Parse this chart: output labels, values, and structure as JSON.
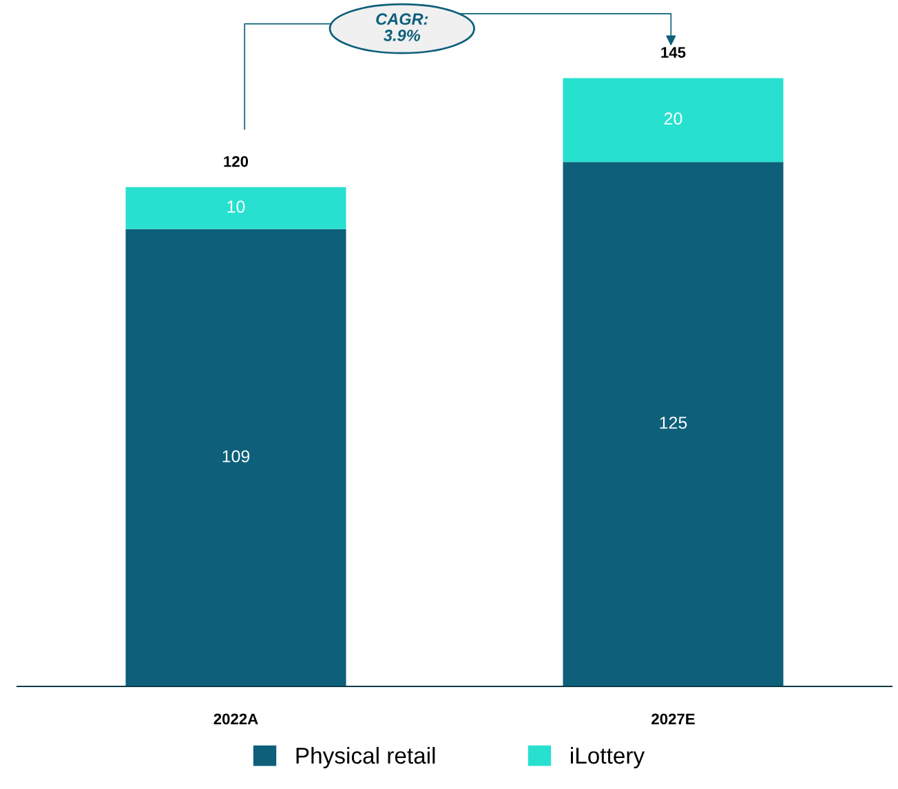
{
  "chart_data": {
    "type": "bar",
    "stacked": true,
    "categories": [
      "2022A",
      "2027E"
    ],
    "series": [
      {
        "name": "Physical retail",
        "color": "#0d5f7a",
        "values": [
          109,
          125
        ]
      },
      {
        "name": "iLottery",
        "color": "#28e0cf",
        "values": [
          10,
          20
        ]
      }
    ],
    "data_labels": true,
    "totals": [
      "120",
      "145"
    ],
    "annotations": [
      "CAGR: 3.9%"
    ],
    "legend": "bottom",
    "grid": false
  }
}
